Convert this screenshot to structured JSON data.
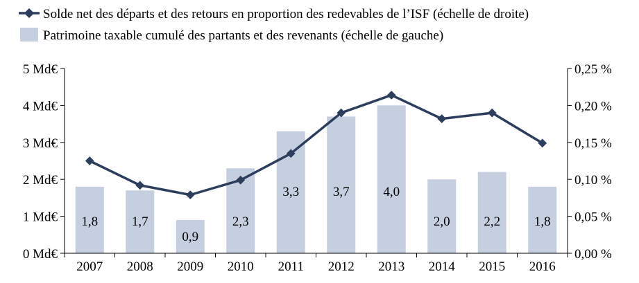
{
  "chart_data": {
    "type": "bar+line",
    "categories": [
      "2007",
      "2008",
      "2009",
      "2010",
      "2011",
      "2012",
      "2013",
      "2014",
      "2015",
      "2016"
    ],
    "series": [
      {
        "name": "Solde net des départs et des retours en proportion des redevables de l’ISF (échelle de droite)",
        "type": "line",
        "axis": "right",
        "color": "#2c3e5c",
        "values": [
          0.125,
          0.092,
          0.079,
          0.099,
          0.135,
          0.19,
          0.214,
          0.182,
          0.19,
          0.149
        ]
      },
      {
        "name": "Patrimoine taxable cumulé des partants et des revenants (échelle de gauche)",
        "type": "bar",
        "axis": "left",
        "color": "#c5cfe0",
        "values": [
          1.8,
          1.7,
          0.9,
          2.3,
          3.3,
          3.7,
          4.0,
          2.0,
          2.2,
          1.8
        ],
        "labels": [
          "1,8",
          "1,7",
          "0,9",
          "2,3",
          "3,3",
          "3,7",
          "4,0",
          "2,0",
          "2,2",
          "1,8"
        ]
      }
    ],
    "left_axis": {
      "ylim": [
        0,
        5
      ],
      "ticks": [
        0,
        1,
        2,
        3,
        4,
        5
      ],
      "tick_labels": [
        "0 Md€",
        "1 Md€",
        "2 Md€",
        "3 Md€",
        "4 Md€",
        "5 Md€"
      ]
    },
    "right_axis": {
      "ylim": [
        0,
        0.25
      ],
      "ticks": [
        0,
        0.05,
        0.1,
        0.15,
        0.2,
        0.25
      ],
      "tick_labels": [
        "0,00 %",
        "0,05 %",
        "0,10 %",
        "0,15 %",
        "0,20 %",
        "0,25 %"
      ]
    },
    "grid": false,
    "legend": "top-left"
  }
}
